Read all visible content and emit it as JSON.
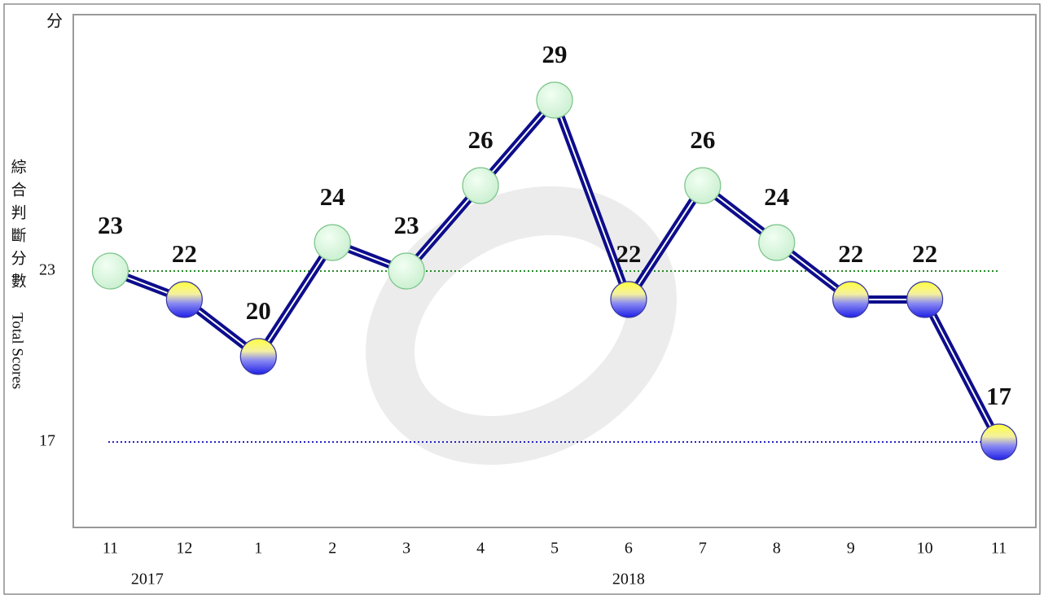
{
  "chart_data": {
    "type": "line",
    "unit_label": "分",
    "y_label": "綜合判斷分數",
    "y_label_en": "Total Scores",
    "categories": [
      "11",
      "12",
      "1",
      "2",
      "3",
      "4",
      "5",
      "6",
      "7",
      "8",
      "9",
      "10",
      "11"
    ],
    "x_groups": [
      {
        "label": "2017",
        "start": 0,
        "end": 1
      },
      {
        "label": "2018",
        "start": 2,
        "end": 12
      }
    ],
    "series": [
      {
        "color": "#0d0d8c",
        "values": [
          23,
          22,
          20,
          24,
          23,
          26,
          29,
          22,
          26,
          24,
          22,
          22,
          17
        ],
        "marker_styles": [
          "green",
          "yellow-blue",
          "yellow-blue",
          "green",
          "green",
          "green",
          "green",
          "yellow-blue",
          "green",
          "green",
          "yellow-blue",
          "yellow-blue",
          "yellow-blue"
        ]
      }
    ],
    "ylim": [
      14,
      32
    ],
    "yticks": [
      17,
      23
    ],
    "tick_line_colors": [
      "#2323c8",
      "#228b22"
    ]
  }
}
